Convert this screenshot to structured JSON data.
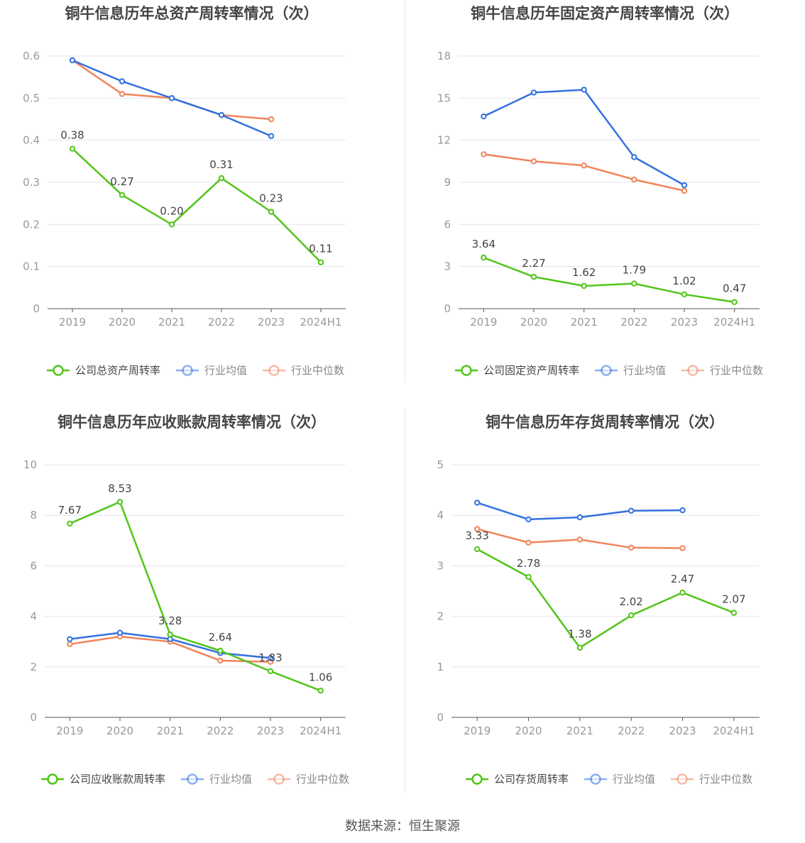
{
  "colors": {
    "company": "#52c41a",
    "average": "#3370e0",
    "median": "#f0845a",
    "grid": "#e3e6f0",
    "axis": "#555555",
    "tick": "#999999",
    "title": "#444444",
    "divider": "#e8e8e8"
  },
  "legend": {
    "average_label": "行业均值",
    "median_label": "行业中位数"
  },
  "source_text": "数据来源：恒生聚源",
  "chart_data": [
    {
      "type": "line",
      "title": "铜牛信息历年总资产周转率情况（次）",
      "categories": [
        "2019",
        "2020",
        "2021",
        "2022",
        "2023",
        "2024H1"
      ],
      "y_ticks": [
        "0",
        "0.1",
        "0.2",
        "0.3",
        "0.4",
        "0.5",
        "0.6"
      ],
      "ylim": [
        0,
        0.6
      ],
      "series": [
        {
          "name": "公司总资产周转率",
          "role": "company",
          "values": [
            0.38,
            0.27,
            0.2,
            0.31,
            0.23,
            0.11
          ],
          "labels": [
            "0.38",
            "0.27",
            "0.20",
            "0.31",
            "0.23",
            "0.11"
          ]
        },
        {
          "name": "行业均值",
          "role": "average",
          "values": [
            0.59,
            0.54,
            0.5,
            0.46,
            0.41,
            null
          ]
        },
        {
          "name": "行业中位数",
          "role": "median",
          "values": [
            0.59,
            0.51,
            0.5,
            0.46,
            0.45,
            null
          ]
        }
      ]
    },
    {
      "type": "line",
      "title": "铜牛信息历年固定资产周转率情况（次）",
      "categories": [
        "2019",
        "2020",
        "2021",
        "2022",
        "2023",
        "2024H1"
      ],
      "y_ticks": [
        "0",
        "3",
        "6",
        "9",
        "12",
        "15",
        "18"
      ],
      "ylim": [
        0,
        18
      ],
      "series": [
        {
          "name": "公司固定资产周转率",
          "role": "company",
          "values": [
            3.64,
            2.27,
            1.62,
            1.79,
            1.02,
            0.47
          ],
          "labels": [
            "3.64",
            "2.27",
            "1.62",
            "1.79",
            "1.02",
            "0.47"
          ]
        },
        {
          "name": "行业均值",
          "role": "average",
          "values": [
            13.7,
            15.4,
            15.6,
            10.8,
            8.8,
            null
          ]
        },
        {
          "name": "行业中位数",
          "role": "median",
          "values": [
            11.0,
            10.5,
            10.2,
            9.2,
            8.4,
            null
          ]
        }
      ]
    },
    {
      "type": "line",
      "title": "铜牛信息历年应收账款周转率情况（次）",
      "categories": [
        "2019",
        "2020",
        "2021",
        "2022",
        "2023",
        "2024H1"
      ],
      "y_ticks": [
        "0",
        "2",
        "4",
        "6",
        "8",
        "10"
      ],
      "ylim": [
        0,
        10
      ],
      "series": [
        {
          "name": "公司应收账款周转率",
          "role": "company",
          "values": [
            7.67,
            8.53,
            3.28,
            2.64,
            1.83,
            1.06
          ],
          "labels": [
            "7.67",
            "8.53",
            "3.28",
            "2.64",
            "1.83",
            "1.06"
          ]
        },
        {
          "name": "行业均值",
          "role": "average",
          "values": [
            3.1,
            3.35,
            3.1,
            2.55,
            2.35,
            null
          ]
        },
        {
          "name": "行业中位数",
          "role": "median",
          "values": [
            2.9,
            3.2,
            3.0,
            2.25,
            2.2,
            null
          ]
        }
      ]
    },
    {
      "type": "line",
      "title": "铜牛信息历年存货周转率情况（次）",
      "categories": [
        "2019",
        "2020",
        "2021",
        "2022",
        "2023",
        "2024H1"
      ],
      "y_ticks": [
        "0",
        "1",
        "2",
        "3",
        "4",
        "5"
      ],
      "ylim": [
        0,
        5
      ],
      "series": [
        {
          "name": "公司存货周转率",
          "role": "company",
          "values": [
            3.33,
            2.78,
            1.38,
            2.02,
            2.47,
            2.07
          ],
          "labels": [
            "3.33",
            "2.78",
            "1.38",
            "2.02",
            "2.47",
            "2.07"
          ]
        },
        {
          "name": "行业均值",
          "role": "average",
          "values": [
            4.25,
            3.92,
            3.96,
            4.09,
            4.1,
            null
          ]
        },
        {
          "name": "行业中位数",
          "role": "median",
          "values": [
            3.73,
            3.46,
            3.52,
            3.36,
            3.35,
            null
          ]
        }
      ]
    }
  ]
}
